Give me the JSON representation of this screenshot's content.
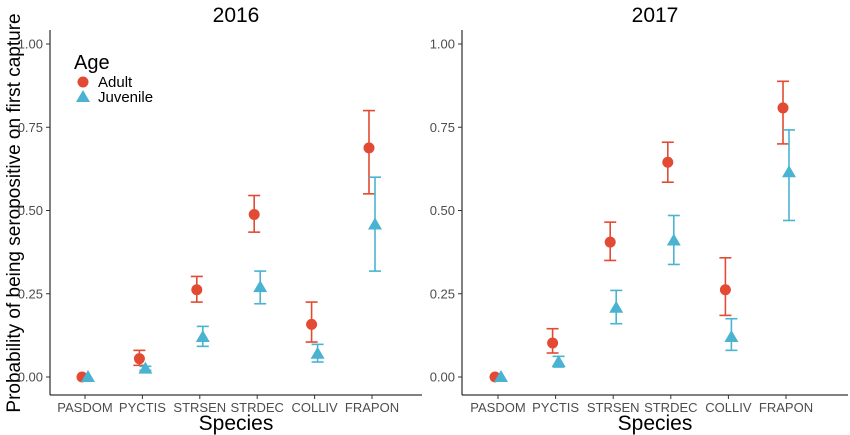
{
  "chart_data": {
    "type": "scatter",
    "ylabel": "Probability of being seropositive on first capture",
    "xlabel": "Species",
    "ylim": [
      0,
      1
    ],
    "yticks": [
      "0.00",
      "0.25",
      "0.50",
      "0.75",
      "1.00"
    ],
    "categories": [
      "PASDOM",
      "PYCTIS",
      "STRSEN",
      "STRDEC",
      "COLLIV",
      "FRAPON"
    ],
    "legend": {
      "title": "Age",
      "placement": "top-left",
      "entries": [
        {
          "label": "Adult",
          "color": "#e34a33",
          "shape": "circle"
        },
        {
          "label": "Juvenile",
          "color": "#4ab3d1",
          "shape": "triangle"
        }
      ]
    },
    "grid": false,
    "panels": [
      {
        "title": "2016",
        "series": [
          {
            "name": "Adult",
            "values": [
              0.0,
              0.055,
              0.262,
              0.488,
              0.158,
              0.688
            ],
            "lower": [
              0.0,
              0.035,
              0.225,
              0.435,
              0.105,
              0.55
            ],
            "upper": [
              0.0,
              0.08,
              0.302,
              0.545,
              0.225,
              0.8
            ]
          },
          {
            "name": "Juvenile",
            "values": [
              0.0,
              0.025,
              0.12,
              0.27,
              0.07,
              0.458
            ],
            "lower": [
              0.0,
              0.02,
              0.092,
              0.22,
              0.045,
              0.318
            ],
            "upper": [
              0.0,
              0.032,
              0.152,
              0.318,
              0.098,
              0.6
            ]
          }
        ]
      },
      {
        "title": "2017",
        "series": [
          {
            "name": "Adult",
            "values": [
              0.0,
              0.102,
              0.405,
              0.645,
              0.262,
              0.808
            ],
            "lower": [
              0.0,
              0.072,
              0.35,
              0.585,
              0.185,
              0.7
            ],
            "upper": [
              0.0,
              0.145,
              0.465,
              0.705,
              0.358,
              0.888
            ]
          },
          {
            "name": "Juvenile",
            "values": [
              0.0,
              0.045,
              0.208,
              0.41,
              0.12,
              0.615
            ],
            "lower": [
              0.0,
              0.03,
              0.16,
              0.338,
              0.08,
              0.47
            ],
            "upper": [
              0.0,
              0.062,
              0.26,
              0.485,
              0.175,
              0.742
            ]
          }
        ]
      }
    ]
  }
}
